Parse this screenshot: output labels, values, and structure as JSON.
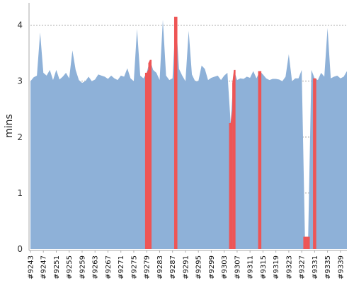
{
  "chart_data": {
    "type": "area",
    "title": "",
    "xlabel": "",
    "ylabel": "mins",
    "ylim": [
      0,
      4.4
    ],
    "yticks": [
      0,
      1,
      2,
      3,
      4
    ],
    "grid": true,
    "colors": {
      "normal": "#8eb1d8",
      "highlight": "#ee5555",
      "grid": "#888888"
    },
    "x_labels": [
      "#9243",
      "#9247",
      "#9251",
      "#9255",
      "#9259",
      "#9263",
      "#9267",
      "#9271",
      "#9275",
      "#9279",
      "#9283",
      "#9287",
      "#9291",
      "#9295",
      "#9299",
      "#9303",
      "#9307",
      "#9311",
      "#9315",
      "#9319",
      "#9323",
      "#9327",
      "#9331",
      "#9335",
      "#9339"
    ],
    "builds": [
      {
        "build": 9243,
        "value": 3.0
      },
      {
        "build": 9244,
        "value": 3.07
      },
      {
        "build": 9245,
        "value": 3.1
      },
      {
        "build": 9246,
        "value": 3.87
      },
      {
        "build": 9247,
        "value": 3.15
      },
      {
        "build": 9248,
        "value": 3.1
      },
      {
        "build": 9249,
        "value": 3.2
      },
      {
        "build": 9250,
        "value": 3.02
      },
      {
        "build": 9251,
        "value": 3.2
      },
      {
        "build": 9252,
        "value": 3.03
      },
      {
        "build": 9253,
        "value": 3.08
      },
      {
        "build": 9254,
        "value": 3.15
      },
      {
        "build": 9255,
        "value": 3.05
      },
      {
        "build": 9256,
        "value": 3.55
      },
      {
        "build": 9257,
        "value": 3.2
      },
      {
        "build": 9258,
        "value": 3.02
      },
      {
        "build": 9259,
        "value": 2.97
      },
      {
        "build": 9260,
        "value": 3.0
      },
      {
        "build": 9261,
        "value": 3.08
      },
      {
        "build": 9262,
        "value": 3.0
      },
      {
        "build": 9263,
        "value": 3.03
      },
      {
        "build": 9264,
        "value": 3.12
      },
      {
        "build": 9265,
        "value": 3.1
      },
      {
        "build": 9266,
        "value": 3.08
      },
      {
        "build": 9267,
        "value": 3.04
      },
      {
        "build": 9268,
        "value": 3.1
      },
      {
        "build": 9269,
        "value": 3.05
      },
      {
        "build": 9270,
        "value": 3.02
      },
      {
        "build": 9271,
        "value": 3.1
      },
      {
        "build": 9272,
        "value": 3.08
      },
      {
        "build": 9273,
        "value": 3.23
      },
      {
        "build": 9274,
        "value": 3.05
      },
      {
        "build": 9275,
        "value": 3.0
      },
      {
        "build": 9276,
        "value": 3.93
      },
      {
        "build": 9277,
        "value": 3.1
      },
      {
        "build": 9278,
        "value": 3.05
      },
      {
        "build": 9279,
        "value": 3.15,
        "highlight": true
      },
      {
        "build": 9280,
        "value": 3.38,
        "highlight": true
      },
      {
        "build": 9281,
        "value": 3.2
      },
      {
        "build": 9282,
        "value": 3.15
      },
      {
        "build": 9283,
        "value": 3.02
      },
      {
        "build": 9284,
        "value": 4.1
      },
      {
        "build": 9285,
        "value": 3.1
      },
      {
        "build": 9286,
        "value": 3.02
      },
      {
        "build": 9287,
        "value": 3.05
      },
      {
        "build": 9288,
        "value": 4.15,
        "highlight": true
      },
      {
        "build": 9289,
        "value": 3.22
      },
      {
        "build": 9290,
        "value": 3.1
      },
      {
        "build": 9291,
        "value": 3.0
      },
      {
        "build": 9292,
        "value": 3.9
      },
      {
        "build": 9293,
        "value": 3.12
      },
      {
        "build": 9294,
        "value": 3.0
      },
      {
        "build": 9295,
        "value": 3.0
      },
      {
        "build": 9296,
        "value": 3.28
      },
      {
        "build": 9297,
        "value": 3.22
      },
      {
        "build": 9298,
        "value": 3.02
      },
      {
        "build": 9299,
        "value": 3.06
      },
      {
        "build": 9300,
        "value": 3.08
      },
      {
        "build": 9301,
        "value": 3.1
      },
      {
        "build": 9302,
        "value": 3.02
      },
      {
        "build": 9303,
        "value": 3.1
      },
      {
        "build": 9304,
        "value": 3.15
      },
      {
        "build": 9305,
        "value": 2.25,
        "highlight": true
      },
      {
        "build": 9306,
        "value": 3.2,
        "highlight": true
      },
      {
        "build": 9307,
        "value": 3.02
      },
      {
        "build": 9308,
        "value": 3.05
      },
      {
        "build": 9309,
        "value": 3.04
      },
      {
        "build": 9310,
        "value": 3.08
      },
      {
        "build": 9311,
        "value": 3.06
      },
      {
        "build": 9312,
        "value": 3.18
      },
      {
        "build": 9313,
        "value": 3.05
      },
      {
        "build": 9314,
        "value": 3.18,
        "highlight": true
      },
      {
        "build": 9315,
        "value": 3.12
      },
      {
        "build": 9316,
        "value": 3.05
      },
      {
        "build": 9317,
        "value": 3.02
      },
      {
        "build": 9318,
        "value": 3.04
      },
      {
        "build": 9319,
        "value": 3.04
      },
      {
        "build": 9320,
        "value": 3.03
      },
      {
        "build": 9321,
        "value": 3.0
      },
      {
        "build": 9322,
        "value": 3.08
      },
      {
        "build": 9323,
        "value": 3.48
      },
      {
        "build": 9324,
        "value": 3.0
      },
      {
        "build": 9325,
        "value": 3.05
      },
      {
        "build": 9326,
        "value": 3.05
      },
      {
        "build": 9327,
        "value": 3.2
      },
      {
        "build": 9328,
        "value": 0.22,
        "highlight": true
      },
      {
        "build": 9329,
        "value": 0.22,
        "highlight": true
      },
      {
        "build": 9330,
        "value": 3.2
      },
      {
        "build": 9331,
        "value": 3.05,
        "highlight": true
      },
      {
        "build": 9332,
        "value": 3.02
      },
      {
        "build": 9333,
        "value": 3.15
      },
      {
        "build": 9334,
        "value": 3.08
      },
      {
        "build": 9335,
        "value": 3.95
      },
      {
        "build": 9336,
        "value": 3.05
      },
      {
        "build": 9337,
        "value": 3.08
      },
      {
        "build": 9338,
        "value": 3.1
      },
      {
        "build": 9339,
        "value": 3.05
      },
      {
        "build": 9340,
        "value": 3.08
      },
      {
        "build": 9341,
        "value": 3.18
      }
    ]
  }
}
